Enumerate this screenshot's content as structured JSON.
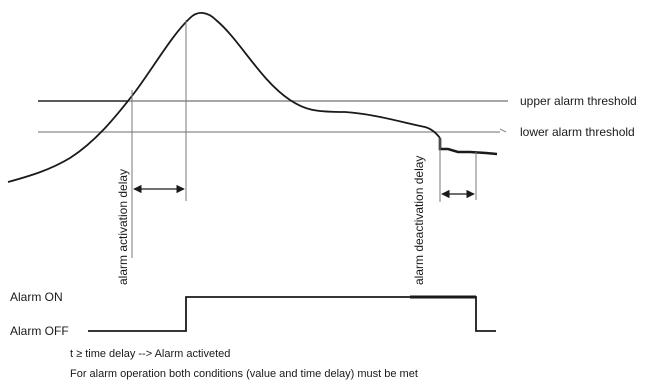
{
  "thresholds": {
    "upper_label": "upper alarm threshold",
    "lower_label": "lower alarm threshold"
  },
  "delays": {
    "activation_label": "alarm activation delay",
    "deactivation_label": "alarm deactivation delay"
  },
  "alarm_states": {
    "on_label": "Alarm ON",
    "off_label": "Alarm OFF"
  },
  "notes": {
    "line1": "t ≥ time delay --> Alarm activeted",
    "line2": "For alarm operation both conditions (value and time delay) must be met"
  },
  "colors": {
    "curve": "#1a1a1a",
    "threshold": "#8a8a8a",
    "marker": "#7a7a7a",
    "text": "#1a1a1a"
  }
}
